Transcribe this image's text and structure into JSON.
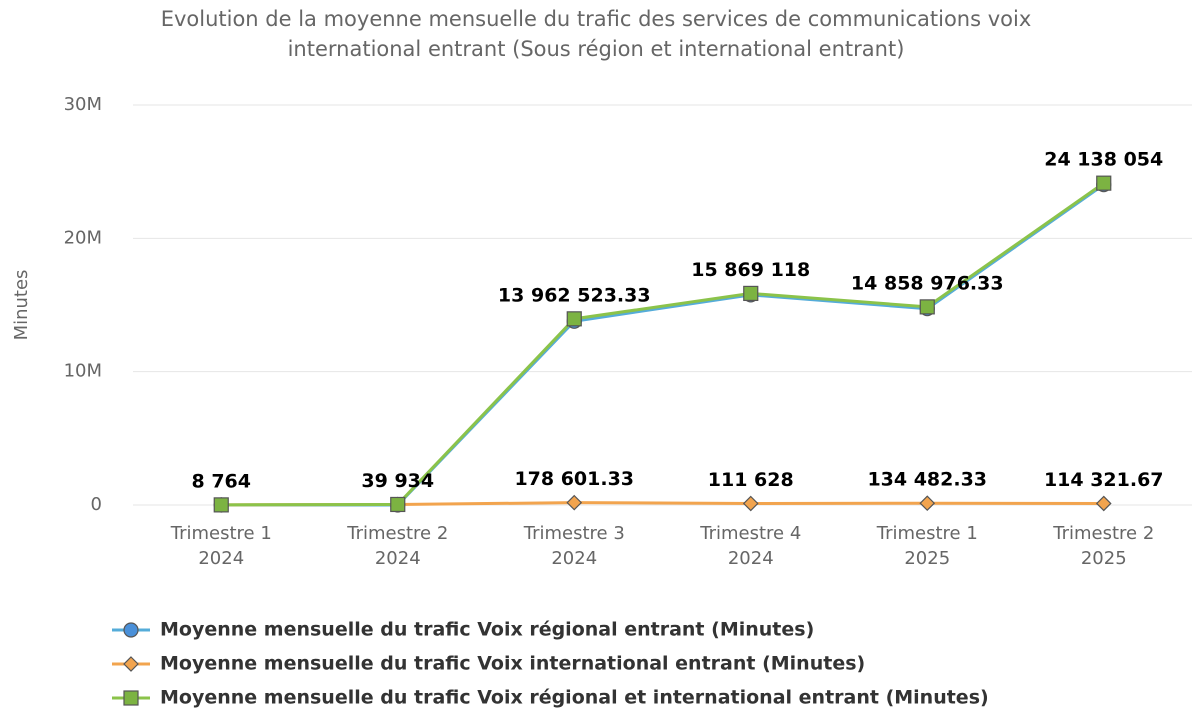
{
  "chart_data": {
    "type": "line",
    "title": [
      "Evolution de la moyenne mensuelle du trafic des services de communications voix",
      "international entrant (Sous région et international entrant)"
    ],
    "y_label": "Minutes",
    "categories": [
      [
        "Trimestre 1",
        "2024"
      ],
      [
        "Trimestre 2",
        "2024"
      ],
      [
        "Trimestre 3",
        "2024"
      ],
      [
        "Trimestre 4",
        "2024"
      ],
      [
        "Trimestre 1",
        "2025"
      ],
      [
        "Trimestre 2",
        "2025"
      ]
    ],
    "ylim": [
      0,
      30000000
    ],
    "yticks": [
      0,
      {
        "value": 10000000,
        "label": "10M"
      },
      {
        "value": 20000000,
        "label": "20M"
      },
      {
        "value": 30000000,
        "label": "30M"
      }
    ],
    "grid": true,
    "legend": "bottom",
    "series": [
      {
        "name": "Moyenne mensuelle du trafic Voix régional entrant (Minutes)",
        "color": "#55acd9",
        "marker": "circle",
        "marker_color": "#4a90d9",
        "values": [
          0,
          0,
          13783922,
          15757490,
          14724494,
          24023732
        ]
      },
      {
        "name": "Moyenne mensuelle du trafic Voix international entrant (Minutes)",
        "color": "#f2a44e",
        "marker": "diamond",
        "marker_color": "#f2a44e",
        "values": [
          8764,
          39934,
          178601.33,
          111628,
          134482.33,
          114321.67
        ],
        "value_labels": [
          "8 764",
          "39 934",
          "178 601.33",
          "111 628",
          "134 482.33",
          "114 321.67"
        ]
      },
      {
        "name": "Moyenne mensuelle du trafic Voix régional et international entrant (Minutes)",
        "color": "#8bc34a",
        "marker": "square",
        "marker_color": "#7cb342",
        "values": [
          8764,
          39934,
          13962523.33,
          15869118,
          14858976.33,
          24138054
        ],
        "value_labels": [
          null,
          null,
          "13 962 523.33",
          "15 869 118",
          "14 858 976.33",
          "24 138 054"
        ]
      }
    ]
  }
}
